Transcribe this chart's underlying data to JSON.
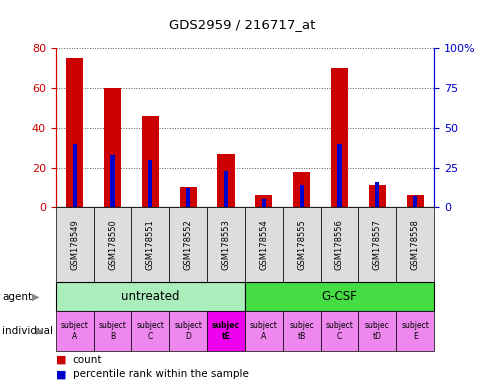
{
  "title": "GDS2959 / 216717_at",
  "samples": [
    "GSM178549",
    "GSM178550",
    "GSM178551",
    "GSM178552",
    "GSM178553",
    "GSM178554",
    "GSM178555",
    "GSM178556",
    "GSM178557",
    "GSM178558"
  ],
  "counts": [
    75,
    60,
    46,
    10,
    27,
    6,
    18,
    70,
    11,
    6
  ],
  "percentile_ranks": [
    40,
    33,
    30,
    12,
    23,
    5,
    14,
    40,
    16,
    7
  ],
  "ylim_left": [
    0,
    80
  ],
  "ylim_right": [
    0,
    100
  ],
  "yticks_left": [
    0,
    20,
    40,
    60,
    80
  ],
  "ytick_labels_right": [
    "0",
    "25",
    "50",
    "75",
    "100%"
  ],
  "yticks_right": [
    0,
    25,
    50,
    75,
    100
  ],
  "bar_color": "#cc0000",
  "percentile_color": "#0000cc",
  "agents": [
    {
      "label": "untreated",
      "start": 0,
      "end": 5,
      "color": "#aaeebb"
    },
    {
      "label": "G-CSF",
      "start": 5,
      "end": 10,
      "color": "#44dd44"
    }
  ],
  "individuals": [
    {
      "label": "subject\nA",
      "idx": 0,
      "bold": false
    },
    {
      "label": "subject\nB",
      "idx": 1,
      "bold": false
    },
    {
      "label": "subject\nC",
      "idx": 2,
      "bold": false
    },
    {
      "label": "subject\nD",
      "idx": 3,
      "bold": false
    },
    {
      "label": "subjec\ntE",
      "idx": 4,
      "bold": true
    },
    {
      "label": "subject\nA",
      "idx": 5,
      "bold": false
    },
    {
      "label": "subjec\ntB",
      "idx": 6,
      "bold": false
    },
    {
      "label": "subject\nC",
      "idx": 7,
      "bold": false
    },
    {
      "label": "subjec\ntD",
      "idx": 8,
      "bold": false
    },
    {
      "label": "subject\nE",
      "idx": 9,
      "bold": false
    }
  ],
  "individual_color_normal": "#ee88ee",
  "individual_color_bold": "#ee00ee",
  "xlabel_area_color": "#dddddd",
  "left_axis_color": "#cc0000",
  "right_axis_color": "#0000cc",
  "grid_color": "#555555",
  "legend_count_color": "#cc0000",
  "legend_percentile_color": "#0000cc",
  "fig_width": 4.85,
  "fig_height": 3.84,
  "fig_dpi": 100
}
